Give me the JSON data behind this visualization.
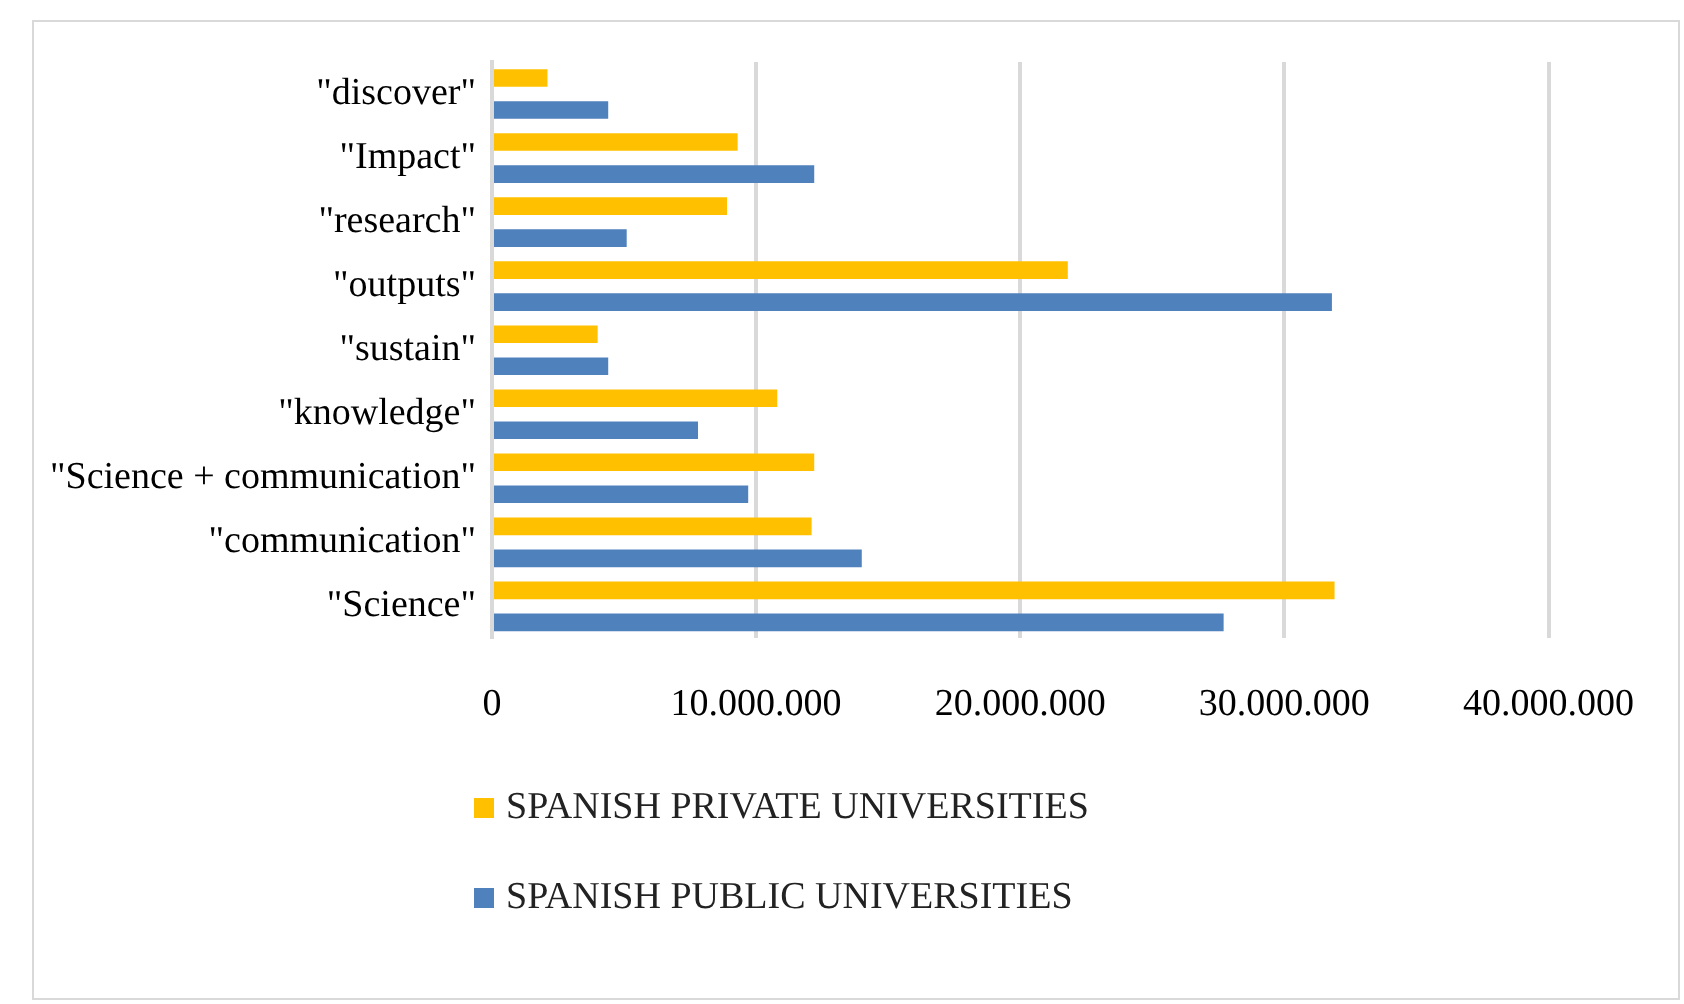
{
  "chart_data": {
    "type": "bar",
    "orientation": "horizontal",
    "categories": [
      "\"discover\"",
      "\"Impact\"",
      "\"research\"",
      "\"outputs\"",
      "\"sustain\"",
      "\"knowledge\"",
      "\"Science + communication\"",
      "\"communication\"",
      "\"Science\""
    ],
    "series": [
      {
        "name": "SPANISH PRIVATE UNIVERSITIES",
        "color": "#ffc000",
        "values": [
          2100000,
          9300000,
          8900000,
          21800000,
          4000000,
          10800000,
          12200000,
          12100000,
          31900000
        ]
      },
      {
        "name": "SPANISH PUBLIC UNIVERSITIES",
        "color": "#4f81bd",
        "values": [
          4400000,
          12200000,
          5100000,
          31800000,
          4400000,
          7800000,
          9700000,
          14000000,
          27700000
        ]
      }
    ],
    "xlim": [
      0,
      40000000
    ],
    "xticks": [
      0,
      {
        "value": 10000000,
        "label": "10.000.000"
      },
      {
        "value": 20000000,
        "label": "20.000.000"
      },
      {
        "value": 30000000,
        "label": "30.000.000"
      },
      {
        "value": 40000000,
        "label": "40.000.000"
      }
    ],
    "grid": "x",
    "legend": "bottom"
  }
}
